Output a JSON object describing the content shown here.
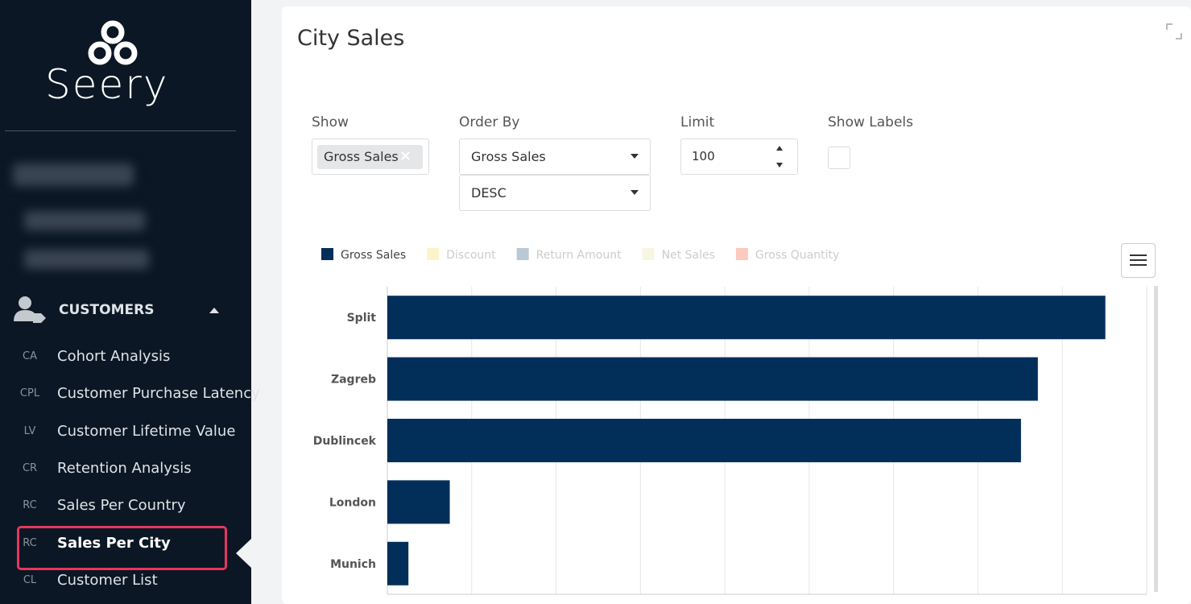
{
  "sidebar": {
    "brand": "Seery",
    "section": "CUSTOMERS",
    "items": [
      {
        "abbr": "CA",
        "label": "Cohort Analysis"
      },
      {
        "abbr": "CPL",
        "label": "Customer Purchase Latency"
      },
      {
        "abbr": "LV",
        "label": "Customer Lifetime Value"
      },
      {
        "abbr": "CR",
        "label": "Retention Analysis"
      },
      {
        "abbr": "RC",
        "label": "Sales Per Country"
      },
      {
        "abbr": "RC",
        "label": "Sales Per City",
        "active": true
      },
      {
        "abbr": "CL",
        "label": "Customer List"
      }
    ]
  },
  "card": {
    "title": "City Sales",
    "filters": {
      "show": {
        "label": "Show",
        "tag": "Gross Sales"
      },
      "order_by": {
        "label": "Order By",
        "field": "Gross Sales",
        "direction": "DESC"
      },
      "limit": {
        "label": "Limit",
        "value": "100"
      },
      "show_labels": {
        "label": "Show Labels",
        "checked": false
      }
    }
  },
  "chart_data": {
    "type": "barh",
    "categories": [
      "Split",
      "Zagreb",
      "Dublincek",
      "London",
      "Munich"
    ],
    "series": [
      {
        "name": "Gross Sales",
        "color": "#022f5a",
        "values": [
          8.51,
          7.71,
          7.51,
          0.74,
          0.25
        ]
      }
    ],
    "hidden_series": [
      {
        "name": "Discount",
        "color": "#fdf3c8"
      },
      {
        "name": "Return Amount",
        "color": "#b9cad6"
      },
      {
        "name": "Net Sales",
        "color": "#f6f6e2"
      },
      {
        "name": "Gross Quantity",
        "color": "#fbc9bd"
      }
    ],
    "xlim": [
      0,
      9
    ],
    "xticks": [
      0,
      1,
      2,
      3,
      4,
      5,
      6,
      7,
      8,
      9
    ],
    "grid": true
  }
}
